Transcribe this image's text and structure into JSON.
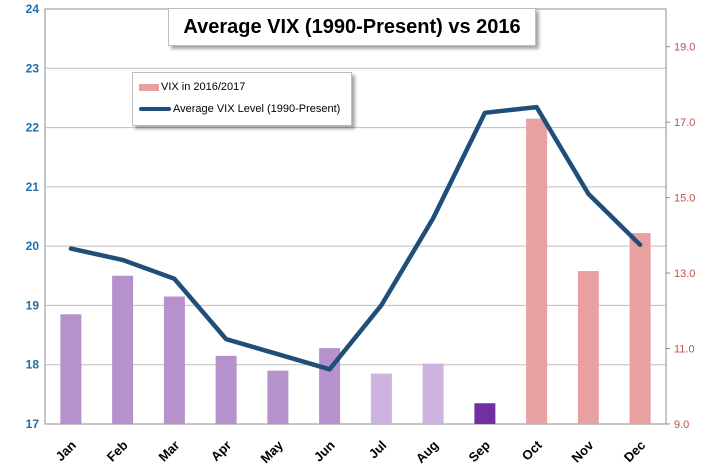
{
  "chart_data": {
    "type": "bar",
    "title": "Average VIX (1990-Present) vs 2016",
    "categories": [
      "Jan",
      "Feb",
      "Mar",
      "Apr",
      "May",
      "Jun",
      "Jul",
      "Aug",
      "Sep",
      "Oct",
      "Nov",
      "Dec"
    ],
    "series": [
      {
        "name": "VIX in 2016/2017",
        "axis": "left",
        "type": "bar",
        "values": [
          18.85,
          19.5,
          19.15,
          18.15,
          17.9,
          18.28,
          17.85,
          18.02,
          17.35,
          22.15,
          19.58,
          20.22
        ],
        "colors": [
          "#b592cc",
          "#b592cc",
          "#b592cc",
          "#b592cc",
          "#b592cc",
          "#b592cc",
          "#ccb3e0",
          "#ccb3e0",
          "#7030a0",
          "#e8a0a0",
          "#e8a0a0",
          "#e8a0a0"
        ]
      },
      {
        "name": "Average VIX Level (1990-Present)",
        "axis": "right",
        "type": "line",
        "color": "#1f4e79",
        "values": [
          13.65,
          13.35,
          12.85,
          11.25,
          10.85,
          10.45,
          12.15,
          14.45,
          17.25,
          17.4,
          15.1,
          13.75
        ]
      }
    ],
    "y_left": {
      "min": 17,
      "max": 24,
      "ticks": [
        "17",
        "18",
        "19",
        "20",
        "21",
        "22",
        "23",
        "24"
      ],
      "color": "#1f6fa8"
    },
    "y_right": {
      "min": 9,
      "max": 20,
      "ticks": [
        "9.0",
        "11.0",
        "13.0",
        "15.0",
        "17.0",
        "19.0"
      ],
      "color": "#c0504d"
    },
    "grid": true,
    "legend_position": "top-left",
    "legend": [
      {
        "label": "VIX in 2016/2017",
        "swatch": "bar",
        "color": "#e8a0a0"
      },
      {
        "label": "Average VIX Level (1990-Present)",
        "swatch": "line",
        "color": "#1f4e79"
      }
    ]
  }
}
